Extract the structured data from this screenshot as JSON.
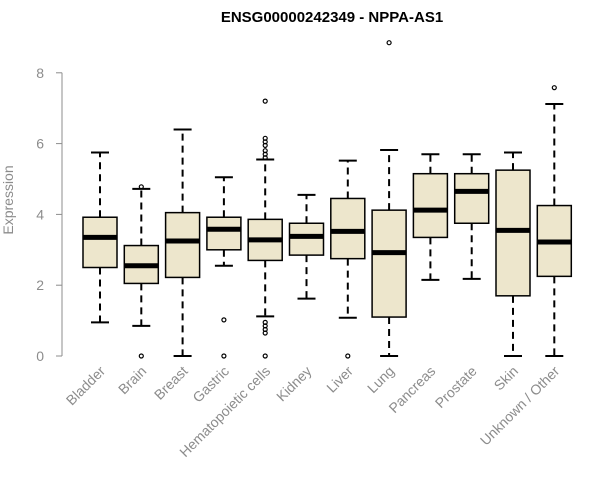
{
  "chart_data": {
    "type": "box",
    "title": "ENSG00000242349 - NPPA-AS1",
    "ylabel": "Expression",
    "xlabel": "",
    "ylim": [
      0,
      8.5
    ],
    "yticks": [
      0,
      2,
      4,
      6,
      8
    ],
    "grid": false,
    "box_fill": "#ede6cc",
    "categories": [
      "Bladder",
      "Brain",
      "Breast",
      "Gastric",
      "Hematopoietic cells",
      "Kidney",
      "Liver",
      "Lung",
      "Pancreas",
      "Prostate",
      "Skin",
      "Unknown / Other"
    ],
    "boxes": [
      {
        "name": "Bladder",
        "whisker_low": 0.95,
        "q1": 2.5,
        "median": 3.35,
        "q3": 3.92,
        "whisker_high": 5.75,
        "outliers": []
      },
      {
        "name": "Brain",
        "whisker_low": 0.85,
        "q1": 2.05,
        "median": 2.55,
        "q3": 3.12,
        "whisker_high": 4.72,
        "outliers": [
          0.0,
          4.78
        ]
      },
      {
        "name": "Breast",
        "whisker_low": 0.0,
        "q1": 2.22,
        "median": 3.25,
        "q3": 4.05,
        "whisker_high": 6.4,
        "outliers": []
      },
      {
        "name": "Gastric",
        "whisker_low": 2.55,
        "q1": 3.0,
        "median": 3.58,
        "q3": 3.92,
        "whisker_high": 5.05,
        "outliers": [
          0.0,
          1.02
        ]
      },
      {
        "name": "Hematopoietic cells",
        "whisker_low": 1.12,
        "q1": 2.7,
        "median": 3.28,
        "q3": 3.86,
        "whisker_high": 5.55,
        "outliers": [
          0.0,
          0.65,
          0.75,
          0.85,
          0.95,
          5.6,
          5.7,
          5.8,
          5.95,
          6.05,
          6.15,
          7.2
        ]
      },
      {
        "name": "Kidney",
        "whisker_low": 1.62,
        "q1": 2.85,
        "median": 3.38,
        "q3": 3.75,
        "whisker_high": 4.55,
        "outliers": []
      },
      {
        "name": "Liver",
        "whisker_low": 1.08,
        "q1": 2.75,
        "median": 3.52,
        "q3": 4.45,
        "whisker_high": 5.52,
        "outliers": [
          0.0
        ]
      },
      {
        "name": "Lung",
        "whisker_low": 0.0,
        "q1": 1.1,
        "median": 2.92,
        "q3": 4.12,
        "whisker_high": 5.82,
        "outliers": [
          8.85
        ]
      },
      {
        "name": "Pancreas",
        "whisker_low": 2.15,
        "q1": 3.35,
        "median": 4.12,
        "q3": 5.15,
        "whisker_high": 5.7,
        "outliers": []
      },
      {
        "name": "Prostate",
        "whisker_low": 2.18,
        "q1": 3.75,
        "median": 4.65,
        "q3": 5.15,
        "whisker_high": 5.7,
        "outliers": []
      },
      {
        "name": "Skin",
        "whisker_low": 0.0,
        "q1": 1.7,
        "median": 3.55,
        "q3": 5.25,
        "whisker_high": 5.75,
        "outliers": []
      },
      {
        "name": "Unknown / Other",
        "whisker_low": 0.0,
        "q1": 2.25,
        "median": 3.22,
        "q3": 4.25,
        "whisker_high": 7.12,
        "outliers": [
          7.58
        ]
      }
    ]
  }
}
